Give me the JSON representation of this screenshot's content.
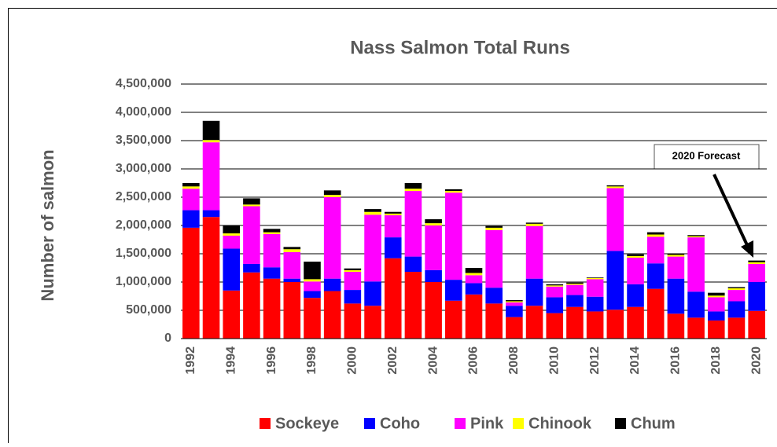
{
  "chart_data": {
    "type": "stacked_bar",
    "title": "Nass Salmon Total Runs",
    "y_label": "Number of salmon",
    "annotation": "2020 Forecast",
    "categories": [
      "1992",
      null,
      "1994",
      null,
      "1996",
      null,
      "1998",
      null,
      "2000",
      null,
      "2002",
      null,
      "2004",
      null,
      "2006",
      null,
      "2008",
      null,
      "2010",
      null,
      "2012",
      null,
      "2014",
      null,
      "2016",
      null,
      "2018",
      null,
      "2020"
    ],
    "series": [
      {
        "name": "Sockeye",
        "color": "#ff0000",
        "values": [
          1960000,
          2150000,
          850000,
          1170000,
          1060000,
          1000000,
          720000,
          840000,
          620000,
          580000,
          1420000,
          1180000,
          1000000,
          670000,
          780000,
          620000,
          380000,
          580000,
          450000,
          560000,
          480000,
          510000,
          560000,
          880000,
          440000,
          370000,
          320000,
          370000,
          490000
        ]
      },
      {
        "name": "Coho",
        "color": "#0000ff",
        "values": [
          310000,
          120000,
          740000,
          150000,
          200000,
          60000,
          120000,
          220000,
          240000,
          430000,
          370000,
          270000,
          210000,
          370000,
          200000,
          280000,
          200000,
          480000,
          280000,
          210000,
          260000,
          1040000,
          400000,
          450000,
          620000,
          460000,
          160000,
          290000,
          510000
        ]
      },
      {
        "name": "Pink",
        "color": "#ff00ff",
        "values": [
          380000,
          1200000,
          230000,
          1020000,
          590000,
          470000,
          170000,
          1440000,
          320000,
          1180000,
          390000,
          1160000,
          790000,
          1540000,
          140000,
          1020000,
          60000,
          930000,
          190000,
          180000,
          310000,
          1110000,
          470000,
          470000,
          390000,
          960000,
          250000,
          200000,
          320000
        ]
      },
      {
        "name": "Chinook",
        "color": "#ffff00",
        "values": [
          40000,
          40000,
          40000,
          30000,
          30000,
          50000,
          40000,
          40000,
          30000,
          50000,
          30000,
          40000,
          40000,
          30000,
          40000,
          40000,
          20000,
          40000,
          20000,
          20000,
          20000,
          30000,
          30000,
          40000,
          30000,
          20000,
          30000,
          30000,
          30000
        ]
      },
      {
        "name": "Chum",
        "color": "#000000",
        "values": [
          60000,
          340000,
          140000,
          110000,
          60000,
          40000,
          310000,
          80000,
          30000,
          50000,
          30000,
          100000,
          70000,
          30000,
          90000,
          30000,
          20000,
          20000,
          20000,
          20000,
          10000,
          20000,
          30000,
          40000,
          20000,
          20000,
          50000,
          20000,
          30000
        ]
      }
    ],
    "ylim": [
      0,
      4500000
    ],
    "yticks": [
      0,
      {
        "value": 500000,
        "label": "500,000"
      },
      {
        "value": 1000000,
        "label": "1,000,000"
      },
      {
        "value": 1500000,
        "label": "1,500,000"
      },
      {
        "value": 2000000,
        "label": "2,000,000"
      },
      {
        "value": 2500000,
        "label": "2,500,000"
      },
      {
        "value": 3000000,
        "label": "3,000,000"
      },
      {
        "value": 3500000,
        "label": "3,500,000"
      },
      {
        "value": 4000000,
        "label": "4,000,000"
      },
      {
        "value": 4500000,
        "label": "4,500,000"
      }
    ],
    "grid": true,
    "legend": "bottom"
  }
}
